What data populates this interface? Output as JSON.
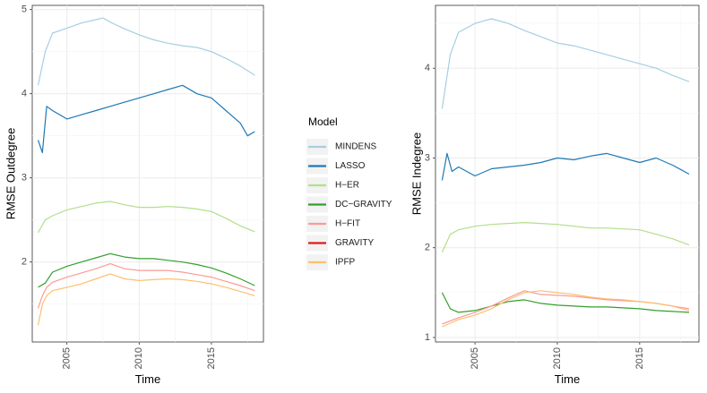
{
  "chart_data": [
    {
      "type": "line",
      "xlabel": "Time",
      "ylabel": "RMSE Outdegree",
      "xlim": [
        2002.6,
        2018.6
      ],
      "ylim": [
        1.05,
        5.05
      ],
      "x_ticks": [
        2005,
        2010,
        2015
      ],
      "y_ticks": [
        2,
        3,
        4,
        5
      ],
      "grid": true,
      "series": [
        {
          "name": "MINDENS",
          "color": "#a6cee3",
          "x": [
            2003.0,
            2003.5,
            2004.0,
            2005.0,
            2006.0,
            2007.0,
            2007.5,
            2008.0,
            2009.0,
            2010.0,
            2011.0,
            2012.0,
            2013.0,
            2014.0,
            2015.0,
            2016.0,
            2017.0,
            2018.0
          ],
          "values": [
            4.1,
            4.5,
            4.72,
            4.78,
            4.84,
            4.88,
            4.9,
            4.85,
            4.77,
            4.7,
            4.64,
            4.6,
            4.57,
            4.55,
            4.5,
            4.42,
            4.33,
            4.22
          ]
        },
        {
          "name": "LASSO",
          "color": "#1f78b4",
          "x": [
            2003.0,
            2003.3,
            2003.6,
            2004.0,
            2005.0,
            2006.0,
            2007.0,
            2008.0,
            2009.0,
            2010.0,
            2011.0,
            2012.0,
            2013.0,
            2014.0,
            2015.0,
            2016.0,
            2017.0,
            2017.5,
            2018.0
          ],
          "values": [
            3.45,
            3.3,
            3.85,
            3.8,
            3.7,
            3.75,
            3.8,
            3.85,
            3.9,
            3.95,
            4.0,
            4.05,
            4.1,
            4.0,
            3.95,
            3.8,
            3.65,
            3.5,
            3.55
          ]
        },
        {
          "name": "H-ER",
          "color": "#b2df8a",
          "x": [
            2003.0,
            2003.5,
            2004.0,
            2005.0,
            2006.0,
            2007.0,
            2008.0,
            2009.0,
            2010.0,
            2011.0,
            2012.0,
            2013.0,
            2014.0,
            2015.0,
            2016.0,
            2017.0,
            2018.0
          ],
          "values": [
            2.35,
            2.5,
            2.55,
            2.62,
            2.66,
            2.7,
            2.72,
            2.68,
            2.65,
            2.65,
            2.66,
            2.65,
            2.63,
            2.6,
            2.52,
            2.43,
            2.36
          ]
        },
        {
          "name": "DC-GRAVITY",
          "color": "#33a02c",
          "x": [
            2003.0,
            2003.5,
            2004.0,
            2005.0,
            2006.0,
            2007.0,
            2008.0,
            2009.0,
            2010.0,
            2011.0,
            2012.0,
            2013.0,
            2014.0,
            2015.0,
            2016.0,
            2017.0,
            2018.0
          ],
          "values": [
            1.7,
            1.75,
            1.88,
            1.95,
            2.0,
            2.05,
            2.1,
            2.06,
            2.04,
            2.04,
            2.02,
            2.0,
            1.97,
            1.93,
            1.87,
            1.8,
            1.72
          ]
        },
        {
          "name": "H-FIT",
          "color": "#fb9a99",
          "x": [
            2003.0,
            2003.3,
            2003.6,
            2004.0,
            2005.0,
            2006.0,
            2007.0,
            2008.0,
            2009.0,
            2010.0,
            2011.0,
            2012.0,
            2013.0,
            2014.0,
            2015.0,
            2016.0,
            2017.0,
            2018.0
          ],
          "values": [
            1.45,
            1.6,
            1.7,
            1.76,
            1.82,
            1.87,
            1.92,
            1.98,
            1.92,
            1.9,
            1.9,
            1.9,
            1.88,
            1.85,
            1.82,
            1.77,
            1.72,
            1.66
          ]
        },
        {
          "name": "GRAVITY",
          "color": "#e31a1c",
          "x": [],
          "values": []
        },
        {
          "name": "IPFP",
          "color": "#fdbf6f",
          "x": [
            2003.0,
            2003.3,
            2003.6,
            2004.0,
            2005.0,
            2006.0,
            2007.0,
            2008.0,
            2009.0,
            2010.0,
            2011.0,
            2012.0,
            2013.0,
            2014.0,
            2015.0,
            2016.0,
            2017.0,
            2018.0
          ],
          "values": [
            1.25,
            1.5,
            1.6,
            1.66,
            1.7,
            1.74,
            1.8,
            1.86,
            1.8,
            1.78,
            1.79,
            1.8,
            1.79,
            1.77,
            1.74,
            1.7,
            1.65,
            1.6
          ]
        }
      ]
    },
    {
      "type": "line",
      "xlabel": "Time",
      "ylabel": "RMSE Indegree",
      "xlim": [
        2002.6,
        2018.6
      ],
      "ylim": [
        0.95,
        4.7
      ],
      "x_ticks": [
        2005,
        2010,
        2015
      ],
      "y_ticks": [
        1,
        2,
        3,
        4
      ],
      "grid": true,
      "series": [
        {
          "name": "MINDENS",
          "color": "#a6cee3",
          "x": [
            2003.0,
            2003.5,
            2004.0,
            2005.0,
            2006.0,
            2007.0,
            2008.0,
            2009.0,
            2010.0,
            2011.0,
            2012.0,
            2013.0,
            2014.0,
            2015.0,
            2016.0,
            2017.0,
            2018.0
          ],
          "values": [
            3.55,
            4.15,
            4.4,
            4.5,
            4.55,
            4.5,
            4.42,
            4.35,
            4.28,
            4.25,
            4.2,
            4.15,
            4.1,
            4.05,
            4.0,
            3.92,
            3.85
          ]
        },
        {
          "name": "LASSO",
          "color": "#1f78b4",
          "x": [
            2003.0,
            2003.3,
            2003.6,
            2004.0,
            2005.0,
            2006.0,
            2007.0,
            2008.0,
            2009.0,
            2010.0,
            2011.0,
            2012.0,
            2013.0,
            2014.0,
            2015.0,
            2016.0,
            2017.0,
            2018.0
          ],
          "values": [
            2.75,
            3.05,
            2.85,
            2.9,
            2.8,
            2.88,
            2.9,
            2.92,
            2.95,
            3.0,
            2.98,
            3.02,
            3.05,
            3.0,
            2.95,
            3.0,
            2.92,
            2.82
          ]
        },
        {
          "name": "H-ER",
          "color": "#b2df8a",
          "x": [
            2003.0,
            2003.5,
            2004.0,
            2005.0,
            2006.0,
            2007.0,
            2008.0,
            2009.0,
            2010.0,
            2011.0,
            2012.0,
            2013.0,
            2014.0,
            2015.0,
            2016.0,
            2017.0,
            2018.0
          ],
          "values": [
            1.95,
            2.15,
            2.2,
            2.24,
            2.26,
            2.27,
            2.28,
            2.27,
            2.26,
            2.24,
            2.22,
            2.22,
            2.21,
            2.2,
            2.15,
            2.1,
            2.03
          ]
        },
        {
          "name": "DC-GRAVITY",
          "color": "#33a02c",
          "x": [
            2003.0,
            2003.5,
            2004.0,
            2005.0,
            2006.0,
            2007.0,
            2008.0,
            2009.0,
            2010.0,
            2011.0,
            2012.0,
            2013.0,
            2014.0,
            2015.0,
            2016.0,
            2017.0,
            2018.0
          ],
          "values": [
            1.5,
            1.32,
            1.28,
            1.3,
            1.35,
            1.4,
            1.42,
            1.38,
            1.36,
            1.35,
            1.34,
            1.34,
            1.33,
            1.32,
            1.3,
            1.29,
            1.28
          ]
        },
        {
          "name": "H-FIT",
          "color": "#fb9a99",
          "x": [
            2003.0,
            2004.0,
            2005.0,
            2006.0,
            2007.0,
            2008.0,
            2009.0,
            2010.0,
            2011.0,
            2012.0,
            2013.0,
            2014.0,
            2015.0,
            2016.0,
            2017.0,
            2018.0
          ],
          "values": [
            1.15,
            1.22,
            1.28,
            1.35,
            1.44,
            1.52,
            1.48,
            1.47,
            1.46,
            1.44,
            1.42,
            1.41,
            1.4,
            1.38,
            1.35,
            1.32
          ]
        },
        {
          "name": "GRAVITY",
          "color": "#e31a1c",
          "x": [],
          "values": []
        },
        {
          "name": "IPFP",
          "color": "#fdbf6f",
          "x": [
            2003.0,
            2004.0,
            2005.0,
            2006.0,
            2007.0,
            2008.0,
            2009.0,
            2010.0,
            2011.0,
            2012.0,
            2013.0,
            2014.0,
            2015.0,
            2016.0,
            2017.0,
            2018.0
          ],
          "values": [
            1.12,
            1.2,
            1.25,
            1.32,
            1.42,
            1.5,
            1.52,
            1.5,
            1.48,
            1.45,
            1.43,
            1.42,
            1.4,
            1.38,
            1.35,
            1.3
          ]
        }
      ]
    }
  ],
  "legend": {
    "title": "Model",
    "placement": "center",
    "items": [
      {
        "label": "MINDENS",
        "color": "#a6cee3"
      },
      {
        "label": "LASSO",
        "color": "#1f78b4"
      },
      {
        "label": "H−ER",
        "color": "#b2df8a"
      },
      {
        "label": "DC−GRAVITY",
        "color": "#33a02c"
      },
      {
        "label": "H−FIT",
        "color": "#fb9a99"
      },
      {
        "label": "GRAVITY",
        "color": "#e31a1c"
      },
      {
        "label": "IPFP",
        "color": "#fdbf6f"
      }
    ]
  }
}
